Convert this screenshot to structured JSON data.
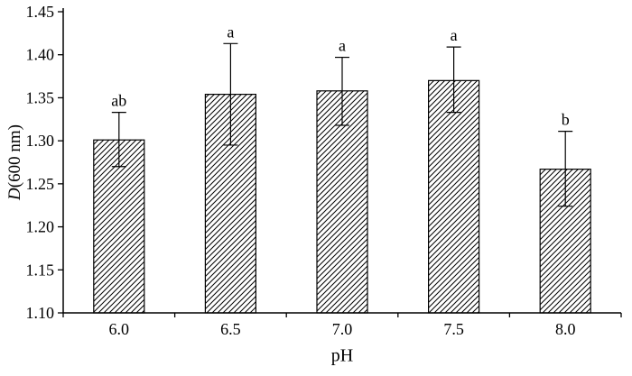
{
  "chart_data": {
    "type": "bar",
    "title": "",
    "xlabel": "pH",
    "ylabel_italic": "D",
    "ylabel_rest": "(600 nm)",
    "categories": [
      "6.0",
      "6.5",
      "7.0",
      "7.5",
      "8.0"
    ],
    "values": [
      1.301,
      1.354,
      1.358,
      1.37,
      1.267
    ],
    "error_upper": [
      0.032,
      0.059,
      0.039,
      0.039,
      0.044
    ],
    "error_lower": [
      0.031,
      0.059,
      0.04,
      0.037,
      0.043
    ],
    "sig_labels": [
      "ab",
      "a",
      "a",
      "a",
      "b"
    ],
    "ylim": [
      1.1,
      1.45
    ],
    "ytick_step": 0.05,
    "yticks": [
      "1.10",
      "1.15",
      "1.20",
      "1.25",
      "1.30",
      "1.35",
      "1.40",
      "1.45"
    ],
    "grid": "off",
    "legend": "none",
    "bar_fill": "#ffffff",
    "hatch_style": "diagonal-forward",
    "hatch_color": "#000000",
    "axis_color": "#000000"
  }
}
